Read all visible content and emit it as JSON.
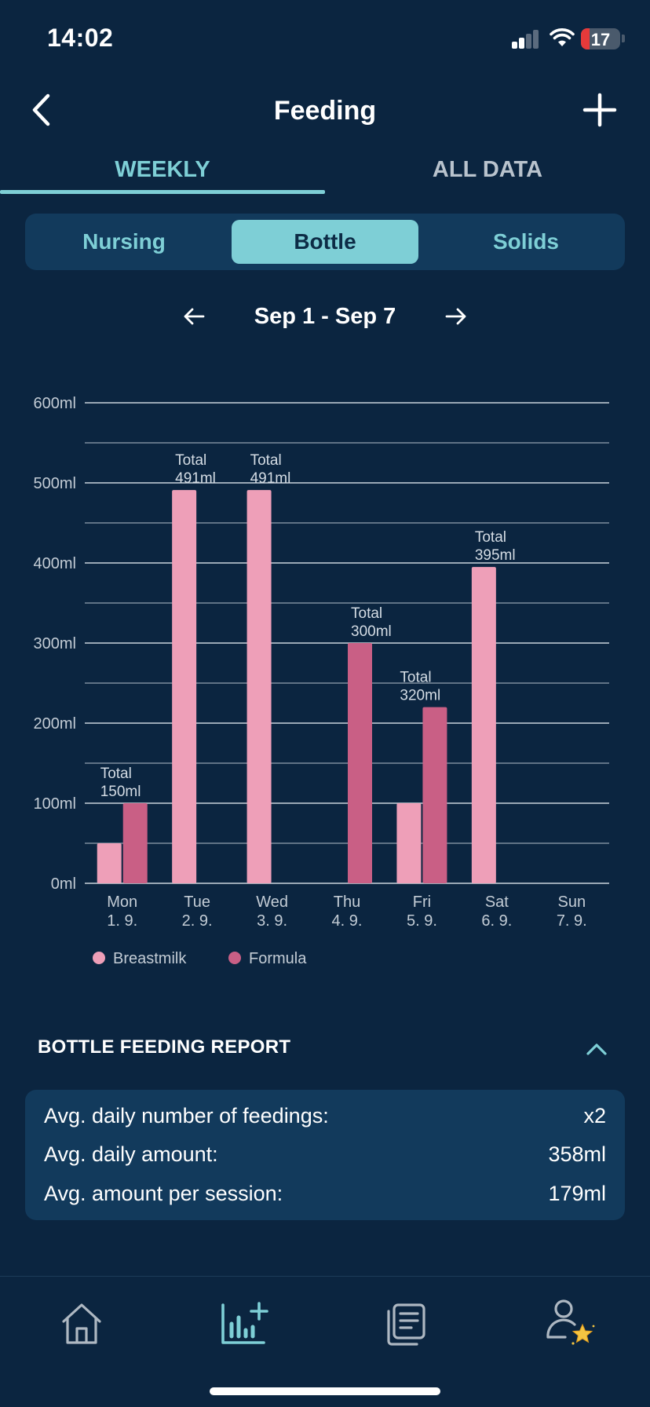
{
  "status_bar": {
    "time": "14:02",
    "battery": "17"
  },
  "nav": {
    "title": "Feeding"
  },
  "tabs": {
    "weekly": "WEEKLY",
    "all_data": "ALL DATA"
  },
  "segments": {
    "nursing": "Nursing",
    "bottle": "Bottle",
    "solids": "Solids",
    "selected": "Bottle"
  },
  "week": {
    "label": "Sep 1 - Sep 7"
  },
  "chart_data": {
    "type": "bar",
    "categories": [
      "Mon 1. 9.",
      "Tue 2. 9.",
      "Wed 3. 9.",
      "Thu 4. 9.",
      "Fri 5. 9.",
      "Sat 6. 9.",
      "Sun 7. 9."
    ],
    "day_names": [
      "Mon",
      "Tue",
      "Wed",
      "Thu",
      "Fri",
      "Sat",
      "Sun"
    ],
    "day_dates": [
      "1. 9.",
      "2. 9.",
      "3. 9.",
      "4. 9.",
      "5. 9.",
      "6. 9.",
      "7. 9."
    ],
    "series": [
      {
        "name": "Breastmilk",
        "color": "#ee9fb8",
        "values": [
          50,
          491,
          491,
          0,
          100,
          395,
          0
        ]
      },
      {
        "name": "Formula",
        "color": "#c95f85",
        "values": [
          100,
          0,
          0,
          300,
          220,
          0,
          0
        ]
      }
    ],
    "totals": [
      150,
      491,
      491,
      300,
      320,
      395,
      0
    ],
    "total_labels": [
      "Total\n150ml",
      "Total\n491ml",
      "Total\n491ml",
      "Total\n300ml",
      "Total\n320ml",
      "Total\n395ml",
      ""
    ],
    "yticks": [
      "0ml",
      "100ml",
      "200ml",
      "300ml",
      "400ml",
      "500ml",
      "600ml"
    ],
    "ylim": [
      0,
      600
    ],
    "gridlines_every": 50,
    "grid": true,
    "legend_position": "bottom-left"
  },
  "report": {
    "title": "BOTTLE FEEDING REPORT",
    "rows": [
      {
        "label": "Avg. daily number of feedings:",
        "value": "x2"
      },
      {
        "label": "Avg. daily amount:",
        "value": "358ml"
      },
      {
        "label": "Avg. amount per session:",
        "value": "179ml"
      }
    ]
  },
  "colors": {
    "background": "#0b2540",
    "accent": "#7ecfd6",
    "card": "#123a5c",
    "breastmilk": "#ee9fb8",
    "formula": "#c95f85"
  },
  "tabbar": {
    "items": [
      "home-icon",
      "statistics-icon",
      "journal-icon",
      "profile-icon"
    ],
    "selected": "statistics-icon"
  }
}
